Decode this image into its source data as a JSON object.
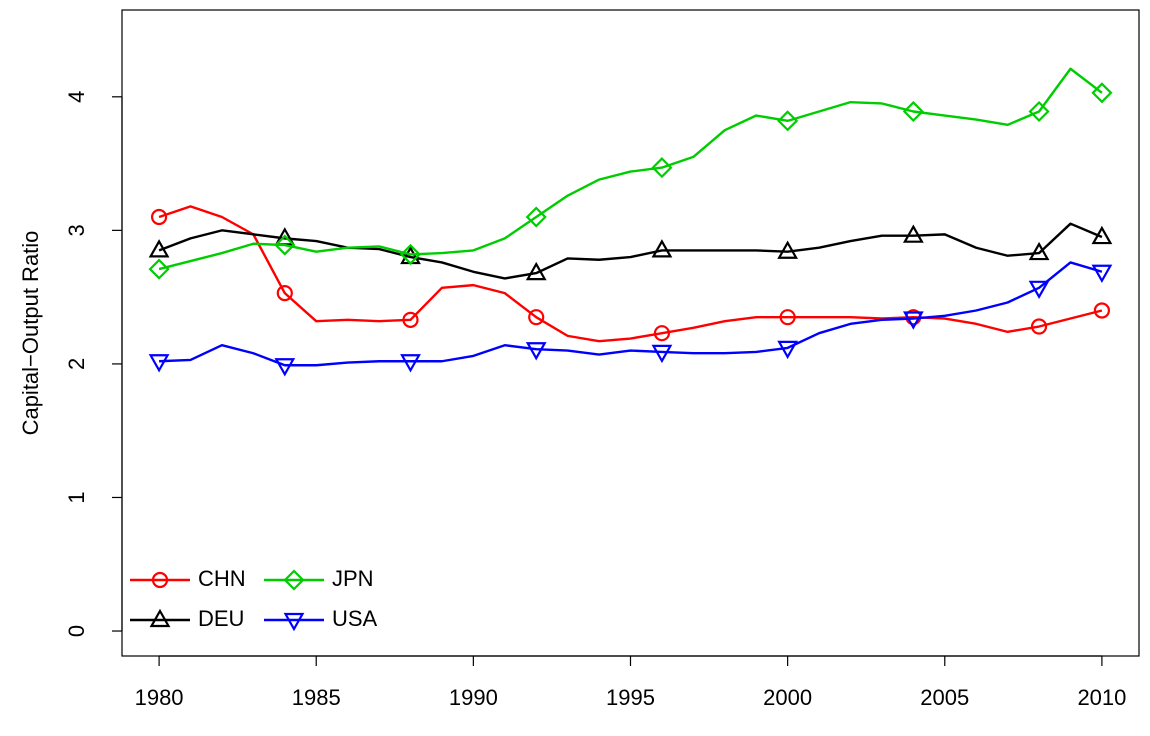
{
  "chart_data": {
    "type": "line",
    "y_label": "Capital−Output Ratio",
    "x": [
      1980,
      1981,
      1982,
      1983,
      1984,
      1985,
      1986,
      1987,
      1988,
      1989,
      1990,
      1991,
      1992,
      1993,
      1994,
      1995,
      1996,
      1997,
      1998,
      1999,
      2000,
      2001,
      2002,
      2003,
      2004,
      2005,
      2006,
      2007,
      2008,
      2009,
      2010
    ],
    "series": [
      {
        "name": "CHN",
        "color": "#ff0000",
        "marker": "circle",
        "values": [
          3.1,
          3.18,
          3.1,
          2.97,
          2.53,
          2.32,
          2.33,
          2.32,
          2.33,
          2.57,
          2.59,
          2.53,
          2.35,
          2.21,
          2.17,
          2.19,
          2.23,
          2.27,
          2.32,
          2.35,
          2.35,
          2.35,
          2.35,
          2.34,
          2.35,
          2.34,
          2.3,
          2.24,
          2.28,
          2.34,
          2.4
        ]
      },
      {
        "name": "DEU",
        "color": "#000000",
        "marker": "triangle-up",
        "values": [
          2.85,
          2.94,
          3.0,
          2.97,
          2.94,
          2.92,
          2.87,
          2.86,
          2.8,
          2.76,
          2.69,
          2.64,
          2.68,
          2.79,
          2.78,
          2.8,
          2.85,
          2.85,
          2.85,
          2.85,
          2.84,
          2.87,
          2.92,
          2.96,
          2.96,
          2.97,
          2.87,
          2.81,
          2.83,
          3.05,
          2.95
        ]
      },
      {
        "name": "JPN",
        "color": "#00cd00",
        "marker": "diamond",
        "values": [
          2.71,
          2.77,
          2.83,
          2.9,
          2.89,
          2.84,
          2.87,
          2.88,
          2.82,
          2.83,
          2.85,
          2.94,
          3.1,
          3.26,
          3.38,
          3.44,
          3.47,
          3.55,
          3.75,
          3.86,
          3.82,
          3.89,
          3.96,
          3.95,
          3.89,
          3.86,
          3.83,
          3.79,
          3.89,
          4.21,
          4.03
        ]
      },
      {
        "name": "USA",
        "color": "#0000ff",
        "marker": "triangle-down",
        "values": [
          2.02,
          2.03,
          2.14,
          2.08,
          1.99,
          1.99,
          2.01,
          2.02,
          2.02,
          2.02,
          2.06,
          2.14,
          2.11,
          2.1,
          2.07,
          2.1,
          2.09,
          2.08,
          2.08,
          2.09,
          2.12,
          2.23,
          2.3,
          2.33,
          2.34,
          2.36,
          2.4,
          2.46,
          2.57,
          2.76,
          2.69
        ]
      }
    ],
    "xlim": [
      1978.82,
      2011.18
    ],
    "xticks": [
      1980,
      1985,
      1990,
      1995,
      2000,
      2005,
      2010
    ],
    "ylim": [
      -0.187,
      4.65
    ],
    "yticks": [
      0,
      1,
      2,
      3,
      4
    ],
    "legend": "bottom-left"
  }
}
